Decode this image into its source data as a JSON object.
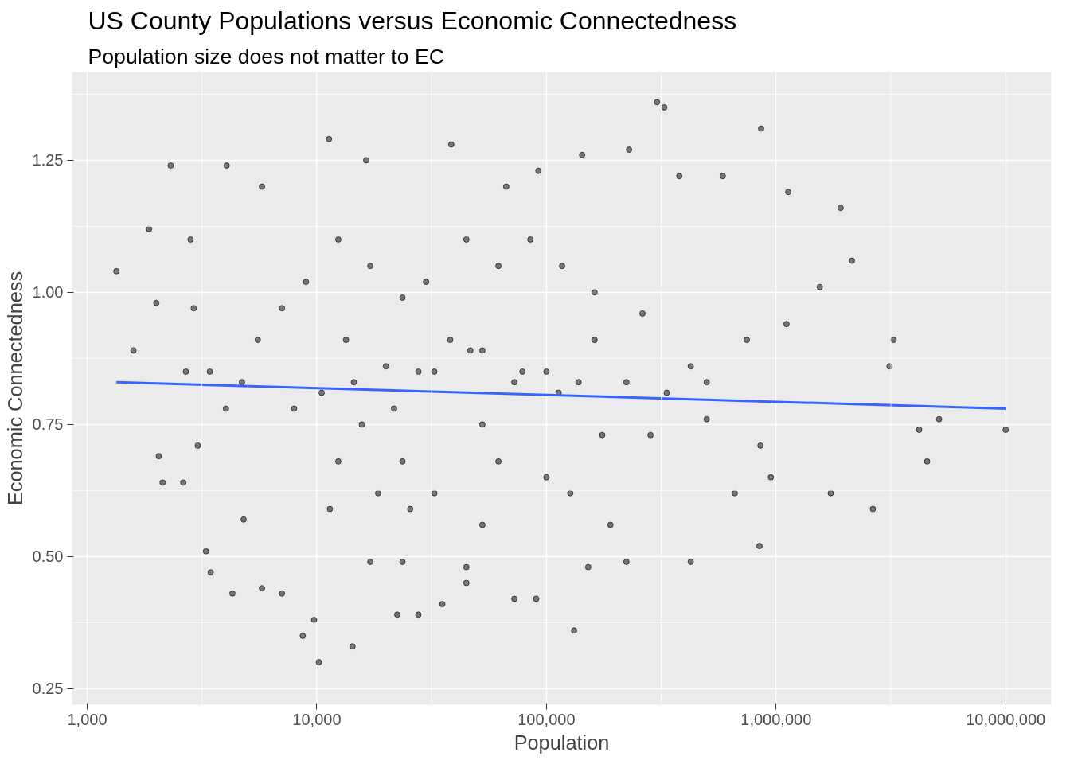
{
  "chart_data": {
    "type": "scatter",
    "title": "US County Populations versus Economic Connectedness",
    "subtitle": "Population size does not matter to EC",
    "xlabel": "Population",
    "ylabel": "Economic Connectedness",
    "log": "x",
    "grid": true,
    "xlim": [
      859,
      15800000
    ],
    "ylim": [
      0.2196,
      1.417
    ],
    "xticks": [
      {
        "value": 1000,
        "label": "1,000"
      },
      {
        "value": 3162.28,
        "label": null
      },
      {
        "value": 10000,
        "label": "10,000"
      },
      {
        "value": 31622.8,
        "label": null
      },
      {
        "value": 100000,
        "label": "100,000"
      },
      {
        "value": 316228,
        "label": null
      },
      {
        "value": 1000000,
        "label": "1,000,000"
      },
      {
        "value": 3162280,
        "label": null
      },
      {
        "value": 10000000,
        "label": "10,000,000"
      }
    ],
    "yticks": [
      0.25,
      {
        "value": 0.375,
        "label": null
      },
      {
        "value": 0.5,
        "label": "0.50"
      },
      {
        "value": 0.625,
        "label": null
      },
      0.75,
      {
        "value": 0.875,
        "label": null
      },
      {
        "value": 1.0,
        "label": "1.00"
      },
      {
        "value": 1.125,
        "label": null
      },
      1.25,
      {
        "value": 1.375,
        "label": null
      }
    ],
    "series": [
      {
        "marker": "circle",
        "color": "#000000",
        "x": [
          1340,
          1590,
          1860,
          2000,
          2050,
          2130,
          2310,
          2620,
          2820,
          3030,
          3290,
          3450,
          4050,
          4290,
          4800,
          5770,
          8690,
          10200,
          9730,
          11300,
          14300,
          16400,
          38500,
          132000,
          143000,
          229000,
          303000,
          326000,
          861000,
          1130000,
          1910000,
          2140000,
          3250000,
          3120000,
          4200000,
          4550000,
          5130000,
          10000000,
          2640000,
          1730000,
          1550000,
          855000,
          949000,
          847000,
          586000,
          425000,
          379000,
          223000,
          152000,
          90200,
          72500,
          44800,
          27700,
          22400,
          35200,
          7050,
          5770,
          12400,
          18500,
          21700,
          25500,
          32500,
          46600,
          52600,
          61800,
          78600,
          100000,
          113000,
          127000,
          162000,
          175000,
          190000,
          284000,
          425000,
          661000,
          1110000,
          746000,
          499000,
          262000,
          162000,
          117000,
          85100,
          61800,
          44800,
          29900,
          23600,
          17100,
          12400,
          8970,
          7050,
          5530,
          4720,
          4020,
          3420,
          2910,
          2690,
          10500,
          14500,
          20000,
          27700,
          38100,
          52600,
          72500,
          100000,
          138000,
          223000,
          334000,
          499000,
          23600,
          15700,
          52600,
          32500,
          11400,
          17100,
          23600,
          44800,
          13400,
          7960,
          66800,
          92300
        ],
        "values": [
          1.04,
          0.89,
          1.12,
          0.98,
          0.69,
          0.64,
          1.24,
          0.64,
          1.1,
          0.71,
          0.51,
          0.47,
          1.24,
          0.43,
          0.57,
          1.2,
          0.35,
          0.3,
          0.38,
          1.29,
          0.33,
          1.25,
          1.28,
          0.36,
          1.26,
          1.27,
          1.36,
          1.35,
          1.31,
          1.19,
          1.16,
          1.06,
          0.91,
          0.86,
          0.74,
          0.68,
          0.76,
          0.74,
          0.59,
          0.62,
          1.01,
          0.71,
          0.65,
          0.52,
          1.22,
          0.49,
          1.22,
          0.49,
          0.48,
          0.42,
          0.42,
          0.45,
          0.39,
          0.39,
          0.41,
          0.43,
          0.44,
          0.68,
          0.62,
          0.78,
          0.59,
          0.85,
          0.89,
          0.75,
          0.68,
          0.85,
          0.65,
          0.81,
          0.62,
          0.91,
          0.73,
          0.56,
          0.73,
          0.86,
          0.62,
          0.94,
          0.91,
          0.83,
          0.96,
          1.0,
          1.05,
          1.1,
          1.05,
          1.1,
          1.02,
          0.99,
          1.05,
          1.1,
          1.02,
          0.97,
          0.91,
          0.83,
          0.78,
          0.85,
          0.97,
          0.85,
          0.81,
          0.83,
          0.86,
          0.85,
          0.91,
          0.89,
          0.83,
          0.85,
          0.83,
          0.83,
          0.81,
          0.76,
          0.68,
          0.75,
          0.56,
          0.62,
          0.59,
          0.49,
          0.49,
          0.48,
          0.91,
          0.78,
          1.2,
          1.23
        ]
      },
      {
        "type": "line",
        "color": "#3366ff",
        "x": [
          1340,
          10000000
        ],
        "values": [
          0.83,
          0.78
        ]
      }
    ]
  }
}
